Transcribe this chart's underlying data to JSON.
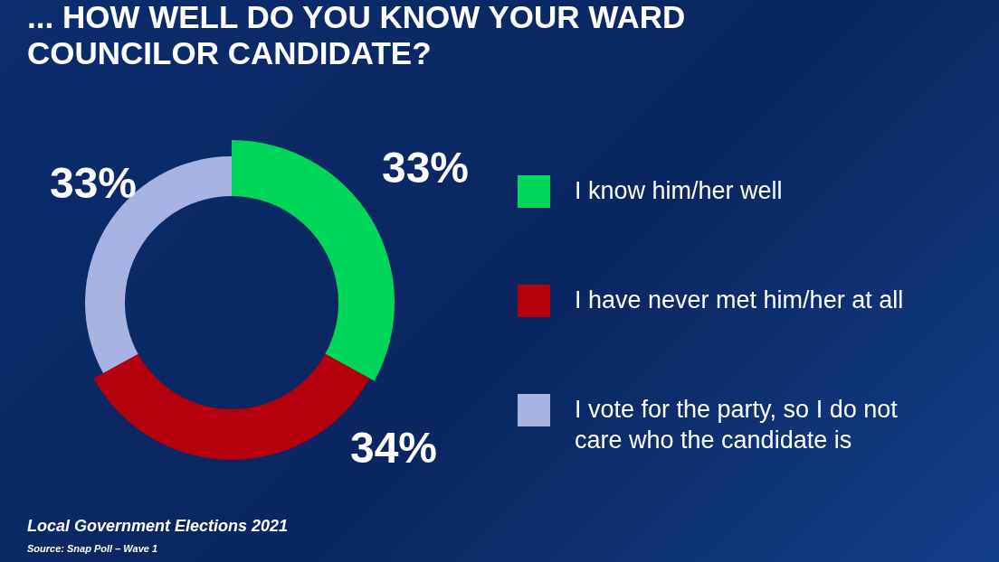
{
  "chart_data": {
    "type": "donut",
    "title": "... HOW WELL DO YOU KNOW YOUR WARD COUNCILOR CANDIDATE?",
    "categories": [
      "I know him/her well",
      "I have never met him/her at all",
      "I vote for the party, so I do not care who the candidate is"
    ],
    "values": [
      33,
      34,
      33
    ],
    "colors": [
      "#00d659",
      "#b5000d",
      "#a6b3e3"
    ],
    "value_labels": [
      "33%",
      "34%",
      "33%"
    ],
    "legend": "right",
    "annotations": [
      "Local Government Elections 2021",
      "Source: Snap Poll – Wave 1"
    ]
  }
}
